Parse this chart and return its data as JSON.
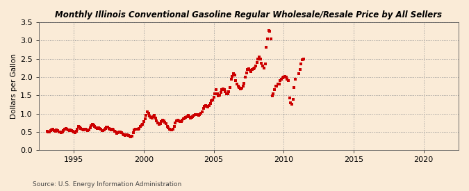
{
  "title": "Monthly Illinois Conventional Gasoline Regular Wholesale/Resale Price by All Sellers",
  "ylabel": "Dollars per Gallon",
  "source": "Source: U.S. Energy Information Administration",
  "background_color": "#faebd7",
  "dot_color": "#cc0000",
  "xlim_left": 1992.5,
  "xlim_right": 2022.5,
  "ylim_bottom": 0.0,
  "ylim_top": 3.5,
  "xticks": [
    1995,
    2000,
    2005,
    2010,
    2015,
    2020
  ],
  "yticks": [
    0.0,
    0.5,
    1.0,
    1.5,
    2.0,
    2.5,
    3.0,
    3.5
  ],
  "data": [
    [
      1993.08,
      0.52
    ],
    [
      1993.17,
      0.5
    ],
    [
      1993.25,
      0.5
    ],
    [
      1993.33,
      0.53
    ],
    [
      1993.42,
      0.55
    ],
    [
      1993.5,
      0.57
    ],
    [
      1993.58,
      0.54
    ],
    [
      1993.67,
      0.52
    ],
    [
      1993.75,
      0.55
    ],
    [
      1993.83,
      0.53
    ],
    [
      1993.92,
      0.5
    ],
    [
      1994.0,
      0.49
    ],
    [
      1994.08,
      0.47
    ],
    [
      1994.17,
      0.5
    ],
    [
      1994.25,
      0.54
    ],
    [
      1994.33,
      0.57
    ],
    [
      1994.42,
      0.6
    ],
    [
      1994.5,
      0.58
    ],
    [
      1994.58,
      0.55
    ],
    [
      1994.67,
      0.53
    ],
    [
      1994.75,
      0.55
    ],
    [
      1994.83,
      0.54
    ],
    [
      1994.92,
      0.52
    ],
    [
      1995.0,
      0.5
    ],
    [
      1995.08,
      0.48
    ],
    [
      1995.17,
      0.52
    ],
    [
      1995.25,
      0.58
    ],
    [
      1995.33,
      0.65
    ],
    [
      1995.42,
      0.63
    ],
    [
      1995.5,
      0.6
    ],
    [
      1995.58,
      0.57
    ],
    [
      1995.67,
      0.56
    ],
    [
      1995.75,
      0.58
    ],
    [
      1995.83,
      0.57
    ],
    [
      1995.92,
      0.55
    ],
    [
      1996.0,
      0.53
    ],
    [
      1996.08,
      0.56
    ],
    [
      1996.17,
      0.62
    ],
    [
      1996.25,
      0.67
    ],
    [
      1996.33,
      0.7
    ],
    [
      1996.42,
      0.68
    ],
    [
      1996.5,
      0.65
    ],
    [
      1996.58,
      0.62
    ],
    [
      1996.67,
      0.6
    ],
    [
      1996.75,
      0.62
    ],
    [
      1996.83,
      0.6
    ],
    [
      1996.92,
      0.57
    ],
    [
      1997.0,
      0.54
    ],
    [
      1997.08,
      0.53
    ],
    [
      1997.17,
      0.56
    ],
    [
      1997.25,
      0.6
    ],
    [
      1997.33,
      0.63
    ],
    [
      1997.42,
      0.63
    ],
    [
      1997.5,
      0.6
    ],
    [
      1997.58,
      0.57
    ],
    [
      1997.67,
      0.55
    ],
    [
      1997.75,
      0.57
    ],
    [
      1997.83,
      0.55
    ],
    [
      1997.92,
      0.52
    ],
    [
      1998.0,
      0.49
    ],
    [
      1998.08,
      0.46
    ],
    [
      1998.17,
      0.48
    ],
    [
      1998.25,
      0.5
    ],
    [
      1998.33,
      0.5
    ],
    [
      1998.42,
      0.48
    ],
    [
      1998.5,
      0.45
    ],
    [
      1998.58,
      0.43
    ],
    [
      1998.67,
      0.41
    ],
    [
      1998.75,
      0.43
    ],
    [
      1998.83,
      0.42
    ],
    [
      1998.92,
      0.4
    ],
    [
      1999.0,
      0.38
    ],
    [
      1999.08,
      0.36
    ],
    [
      1999.17,
      0.38
    ],
    [
      1999.25,
      0.48
    ],
    [
      1999.33,
      0.56
    ],
    [
      1999.42,
      0.58
    ],
    [
      1999.5,
      0.57
    ],
    [
      1999.58,
      0.57
    ],
    [
      1999.67,
      0.6
    ],
    [
      1999.75,
      0.65
    ],
    [
      1999.83,
      0.68
    ],
    [
      1999.92,
      0.7
    ],
    [
      2000.0,
      0.78
    ],
    [
      2000.08,
      0.85
    ],
    [
      2000.17,
      0.95
    ],
    [
      2000.25,
      1.05
    ],
    [
      2000.33,
      1.02
    ],
    [
      2000.42,
      0.93
    ],
    [
      2000.5,
      0.9
    ],
    [
      2000.58,
      0.88
    ],
    [
      2000.67,
      0.92
    ],
    [
      2000.75,
      0.95
    ],
    [
      2000.83,
      0.88
    ],
    [
      2000.92,
      0.8
    ],
    [
      2001.0,
      0.75
    ],
    [
      2001.08,
      0.7
    ],
    [
      2001.17,
      0.72
    ],
    [
      2001.25,
      0.78
    ],
    [
      2001.33,
      0.82
    ],
    [
      2001.42,
      0.8
    ],
    [
      2001.5,
      0.77
    ],
    [
      2001.58,
      0.72
    ],
    [
      2001.67,
      0.65
    ],
    [
      2001.75,
      0.62
    ],
    [
      2001.83,
      0.58
    ],
    [
      2001.92,
      0.55
    ],
    [
      2002.0,
      0.55
    ],
    [
      2002.08,
      0.58
    ],
    [
      2002.17,
      0.65
    ],
    [
      2002.25,
      0.75
    ],
    [
      2002.33,
      0.8
    ],
    [
      2002.42,
      0.82
    ],
    [
      2002.5,
      0.8
    ],
    [
      2002.58,
      0.78
    ],
    [
      2002.67,
      0.78
    ],
    [
      2002.75,
      0.82
    ],
    [
      2002.83,
      0.85
    ],
    [
      2002.92,
      0.88
    ],
    [
      2003.0,
      0.9
    ],
    [
      2003.08,
      0.92
    ],
    [
      2003.17,
      0.95
    ],
    [
      2003.25,
      0.92
    ],
    [
      2003.33,
      0.88
    ],
    [
      2003.42,
      0.9
    ],
    [
      2003.5,
      0.92
    ],
    [
      2003.58,
      0.95
    ],
    [
      2003.67,
      0.97
    ],
    [
      2003.75,
      0.98
    ],
    [
      2003.83,
      0.97
    ],
    [
      2003.92,
      0.95
    ],
    [
      2004.0,
      0.98
    ],
    [
      2004.08,
      1.02
    ],
    [
      2004.17,
      1.05
    ],
    [
      2004.25,
      1.15
    ],
    [
      2004.33,
      1.2
    ],
    [
      2004.42,
      1.22
    ],
    [
      2004.5,
      1.2
    ],
    [
      2004.58,
      1.18
    ],
    [
      2004.67,
      1.22
    ],
    [
      2004.75,
      1.28
    ],
    [
      2004.83,
      1.35
    ],
    [
      2004.92,
      1.38
    ],
    [
      2005.0,
      1.45
    ],
    [
      2005.08,
      1.55
    ],
    [
      2005.17,
      1.65
    ],
    [
      2005.25,
      1.55
    ],
    [
      2005.33,
      1.48
    ],
    [
      2005.42,
      1.5
    ],
    [
      2005.5,
      1.58
    ],
    [
      2005.58,
      1.65
    ],
    [
      2005.67,
      1.68
    ],
    [
      2005.75,
      1.65
    ],
    [
      2005.83,
      1.6
    ],
    [
      2005.92,
      1.55
    ],
    [
      2006.0,
      1.55
    ],
    [
      2006.08,
      1.6
    ],
    [
      2006.17,
      1.72
    ],
    [
      2006.25,
      1.95
    ],
    [
      2006.33,
      2.02
    ],
    [
      2006.42,
      2.1
    ],
    [
      2006.5,
      2.05
    ],
    [
      2006.58,
      1.9
    ],
    [
      2006.67,
      1.8
    ],
    [
      2006.75,
      1.75
    ],
    [
      2006.83,
      1.72
    ],
    [
      2006.92,
      1.68
    ],
    [
      2007.0,
      1.7
    ],
    [
      2007.08,
      1.75
    ],
    [
      2007.17,
      1.82
    ],
    [
      2007.25,
      2.0
    ],
    [
      2007.33,
      2.12
    ],
    [
      2007.42,
      2.2
    ],
    [
      2007.5,
      2.22
    ],
    [
      2007.58,
      2.18
    ],
    [
      2007.67,
      2.15
    ],
    [
      2007.75,
      2.2
    ],
    [
      2007.83,
      2.22
    ],
    [
      2007.92,
      2.25
    ],
    [
      2008.0,
      2.3
    ],
    [
      2008.08,
      2.4
    ],
    [
      2008.17,
      2.5
    ],
    [
      2008.25,
      2.55
    ],
    [
      2008.33,
      2.5
    ],
    [
      2008.42,
      2.38
    ],
    [
      2008.5,
      2.3
    ],
    [
      2008.58,
      2.25
    ],
    [
      2008.67,
      2.35
    ],
    [
      2008.75,
      2.82
    ],
    [
      2008.83,
      3.05
    ],
    [
      2008.92,
      3.27
    ],
    [
      2009.0,
      3.25
    ],
    [
      2009.08,
      3.05
    ],
    [
      2009.17,
      1.48
    ],
    [
      2009.25,
      1.55
    ],
    [
      2009.33,
      1.65
    ],
    [
      2009.42,
      1.75
    ],
    [
      2009.5,
      1.75
    ],
    [
      2009.58,
      1.8
    ],
    [
      2009.67,
      1.8
    ],
    [
      2009.75,
      1.9
    ],
    [
      2009.83,
      1.95
    ],
    [
      2009.92,
      1.98
    ],
    [
      2010.0,
      2.0
    ],
    [
      2010.08,
      2.02
    ],
    [
      2010.17,
      2.0
    ],
    [
      2010.25,
      1.95
    ],
    [
      2010.33,
      1.9
    ],
    [
      2010.42,
      1.42
    ],
    [
      2010.5,
      1.3
    ],
    [
      2010.58,
      1.25
    ],
    [
      2010.67,
      1.4
    ],
    [
      2010.75,
      1.72
    ],
    [
      2010.83,
      1.95
    ],
    [
      2011.08,
      2.1
    ],
    [
      2011.17,
      2.2
    ],
    [
      2011.25,
      2.35
    ],
    [
      2011.33,
      2.48
    ],
    [
      2011.42,
      2.5
    ]
  ]
}
